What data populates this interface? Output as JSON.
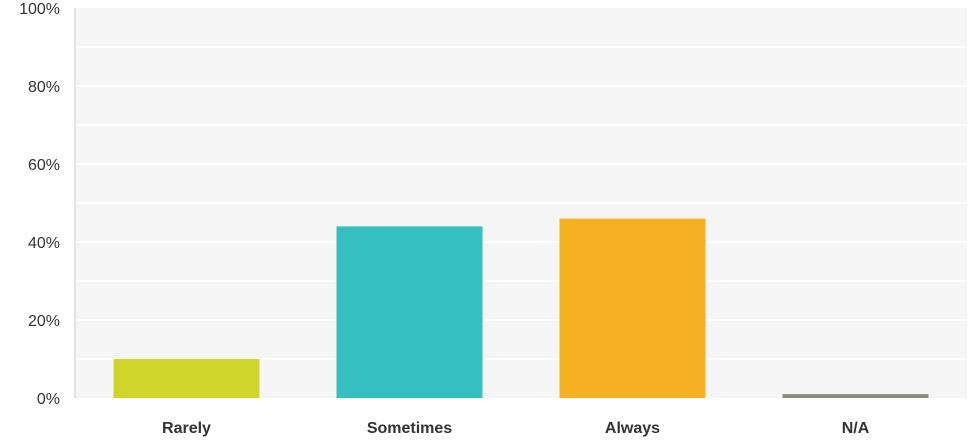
{
  "chart_data": {
    "type": "bar",
    "categories": [
      "Rarely",
      "Sometimes",
      "Always",
      "N/A"
    ],
    "values": [
      10,
      44,
      46,
      1
    ],
    "ylim": [
      0,
      100
    ],
    "y_tick_labels": [
      "0%",
      "20%",
      "40%",
      "60%",
      "80%",
      "100%"
    ],
    "y_ticks": [
      0,
      20,
      40,
      60,
      80,
      100
    ],
    "grid": true,
    "colors": [
      "#d1d52a",
      "#35bfc0",
      "#f5b122",
      "#8b8b80"
    ],
    "plot_background": "#f5f5f5",
    "gridline_color": "#ffffff"
  }
}
